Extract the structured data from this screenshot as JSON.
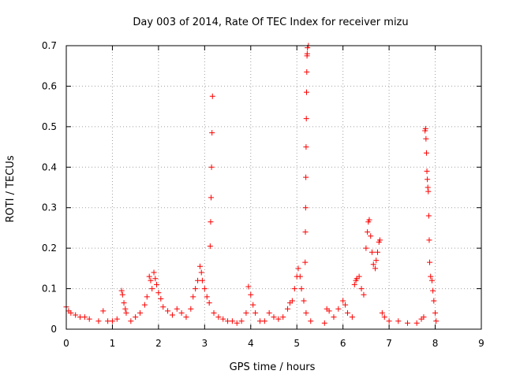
{
  "chart_data": {
    "type": "scatter",
    "title": "Day 003 of 2014, Rate Of TEC Index for receiver mizu",
    "xlabel": "GPS time / hours",
    "ylabel": "ROTI / TECUs",
    "xlim": [
      0,
      9
    ],
    "ylim": [
      0,
      0.7
    ],
    "xticks": [
      0,
      1,
      2,
      3,
      4,
      5,
      6,
      7,
      8,
      9
    ],
    "yticks": [
      0,
      0.1,
      0.2,
      0.3,
      0.4,
      0.5,
      0.6,
      0.7
    ],
    "xtick_labels": [
      "0",
      "1",
      "2",
      "3",
      "4",
      "5",
      "6",
      "7",
      "8",
      "9"
    ],
    "ytick_labels": [
      "0",
      "0.1",
      "0.2",
      "0.3",
      "0.4",
      "0.5",
      "0.6",
      "0.7"
    ],
    "grid": true,
    "marker": "+",
    "color": "#ff0000",
    "series": [
      {
        "name": "ROTI",
        "points": [
          [
            0.0,
            0.055
          ],
          [
            0.05,
            0.045
          ],
          [
            0.1,
            0.04
          ],
          [
            0.2,
            0.035
          ],
          [
            0.3,
            0.03
          ],
          [
            0.4,
            0.03
          ],
          [
            0.5,
            0.025
          ],
          [
            0.7,
            0.02
          ],
          [
            0.8,
            0.045
          ],
          [
            0.9,
            0.02
          ],
          [
            1.0,
            0.02
          ],
          [
            1.1,
            0.025
          ],
          [
            1.2,
            0.095
          ],
          [
            1.22,
            0.085
          ],
          [
            1.25,
            0.065
          ],
          [
            1.28,
            0.05
          ],
          [
            1.3,
            0.04
          ],
          [
            1.4,
            0.02
          ],
          [
            1.5,
            0.03
          ],
          [
            1.6,
            0.04
          ],
          [
            1.7,
            0.06
          ],
          [
            1.75,
            0.08
          ],
          [
            1.8,
            0.13
          ],
          [
            1.83,
            0.12
          ],
          [
            1.86,
            0.1
          ],
          [
            1.9,
            0.14
          ],
          [
            1.93,
            0.125
          ],
          [
            1.96,
            0.11
          ],
          [
            2.0,
            0.09
          ],
          [
            2.05,
            0.075
          ],
          [
            2.1,
            0.055
          ],
          [
            2.2,
            0.045
          ],
          [
            2.3,
            0.035
          ],
          [
            2.4,
            0.05
          ],
          [
            2.5,
            0.04
          ],
          [
            2.6,
            0.03
          ],
          [
            2.7,
            0.05
          ],
          [
            2.75,
            0.08
          ],
          [
            2.8,
            0.1
          ],
          [
            2.85,
            0.12
          ],
          [
            2.9,
            0.155
          ],
          [
            2.93,
            0.14
          ],
          [
            2.95,
            0.12
          ],
          [
            3.0,
            0.1
          ],
          [
            3.05,
            0.08
          ],
          [
            3.1,
            0.065
          ],
          [
            3.12,
            0.205
          ],
          [
            3.13,
            0.265
          ],
          [
            3.14,
            0.325
          ],
          [
            3.15,
            0.4
          ],
          [
            3.16,
            0.485
          ],
          [
            3.17,
            0.575
          ],
          [
            3.2,
            0.04
          ],
          [
            3.3,
            0.03
          ],
          [
            3.4,
            0.025
          ],
          [
            3.5,
            0.02
          ],
          [
            3.6,
            0.02
          ],
          [
            3.7,
            0.015
          ],
          [
            3.8,
            0.02
          ],
          [
            3.9,
            0.04
          ],
          [
            3.95,
            0.105
          ],
          [
            4.0,
            0.085
          ],
          [
            4.05,
            0.06
          ],
          [
            4.1,
            0.04
          ],
          [
            4.2,
            0.02
          ],
          [
            4.3,
            0.02
          ],
          [
            4.4,
            0.04
          ],
          [
            4.5,
            0.03
          ],
          [
            4.6,
            0.025
          ],
          [
            4.7,
            0.03
          ],
          [
            4.8,
            0.05
          ],
          [
            4.85,
            0.065
          ],
          [
            4.9,
            0.07
          ],
          [
            4.95,
            0.1
          ],
          [
            5.0,
            0.13
          ],
          [
            5.03,
            0.15
          ],
          [
            5.07,
            0.13
          ],
          [
            5.1,
            0.1
          ],
          [
            5.15,
            0.07
          ],
          [
            5.2,
            0.04
          ],
          [
            5.18,
            0.165
          ],
          [
            5.185,
            0.24
          ],
          [
            5.19,
            0.3
          ],
          [
            5.195,
            0.375
          ],
          [
            5.2,
            0.45
          ],
          [
            5.205,
            0.52
          ],
          [
            5.21,
            0.585
          ],
          [
            5.215,
            0.635
          ],
          [
            5.22,
            0.675
          ],
          [
            5.225,
            0.68
          ],
          [
            5.23,
            0.695
          ],
          [
            5.25,
            0.7
          ],
          [
            5.3,
            0.02
          ],
          [
            5.6,
            0.015
          ],
          [
            5.65,
            0.05
          ],
          [
            5.7,
            0.045
          ],
          [
            5.8,
            0.03
          ],
          [
            5.9,
            0.05
          ],
          [
            6.0,
            0.07
          ],
          [
            6.05,
            0.06
          ],
          [
            6.1,
            0.04
          ],
          [
            6.2,
            0.03
          ],
          [
            6.25,
            0.11
          ],
          [
            6.28,
            0.12
          ],
          [
            6.3,
            0.125
          ],
          [
            6.35,
            0.13
          ],
          [
            6.4,
            0.1
          ],
          [
            6.45,
            0.085
          ],
          [
            6.5,
            0.2
          ],
          [
            6.53,
            0.24
          ],
          [
            6.55,
            0.265
          ],
          [
            6.57,
            0.27
          ],
          [
            6.6,
            0.23
          ],
          [
            6.63,
            0.19
          ],
          [
            6.66,
            0.16
          ],
          [
            6.7,
            0.15
          ],
          [
            6.72,
            0.17
          ],
          [
            6.75,
            0.19
          ],
          [
            6.78,
            0.215
          ],
          [
            6.8,
            0.22
          ],
          [
            6.85,
            0.04
          ],
          [
            6.9,
            0.03
          ],
          [
            7.0,
            0.02
          ],
          [
            7.2,
            0.02
          ],
          [
            7.4,
            0.015
          ],
          [
            7.6,
            0.015
          ],
          [
            7.7,
            0.025
          ],
          [
            7.75,
            0.03
          ],
          [
            7.78,
            0.49
          ],
          [
            7.79,
            0.495
          ],
          [
            7.8,
            0.47
          ],
          [
            7.81,
            0.435
          ],
          [
            7.82,
            0.39
          ],
          [
            7.83,
            0.37
          ],
          [
            7.84,
            0.35
          ],
          [
            7.85,
            0.34
          ],
          [
            7.86,
            0.28
          ],
          [
            7.87,
            0.22
          ],
          [
            7.88,
            0.165
          ],
          [
            7.9,
            0.13
          ],
          [
            7.93,
            0.12
          ],
          [
            7.95,
            0.095
          ],
          [
            7.97,
            0.07
          ],
          [
            8.0,
            0.04
          ],
          [
            8.02,
            0.02
          ]
        ]
      }
    ]
  }
}
